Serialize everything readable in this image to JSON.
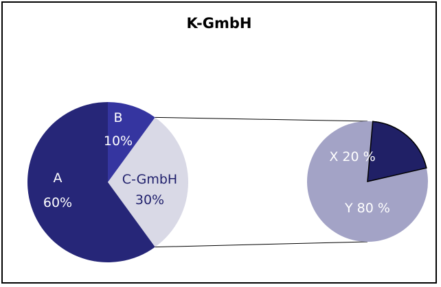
{
  "chart_data": {
    "type": "pie",
    "title": "K-GmbH",
    "main_pie": {
      "slices": [
        {
          "label": "B",
          "value_text": "10%",
          "value": 10,
          "color": "#3535a0",
          "text_color": "#ffffff"
        },
        {
          "label": "C-GmbH",
          "value_text": "30%",
          "value": 30,
          "color": "#d9d9e6",
          "text_color": "#1f1f6b"
        },
        {
          "label": "A",
          "value_text": "60%",
          "value": 60,
          "color": "#262678",
          "text_color": "#ffffff"
        }
      ]
    },
    "breakout_pie": {
      "of_slice": "C-GmbH",
      "slices": [
        {
          "label": "X 20 %",
          "value": 20,
          "color": "#202066",
          "text_color": "#ffffff"
        },
        {
          "label": "Y 80 %",
          "value": 80,
          "color": "#a3a3c6",
          "text_color": "#ffffff"
        }
      ]
    }
  }
}
